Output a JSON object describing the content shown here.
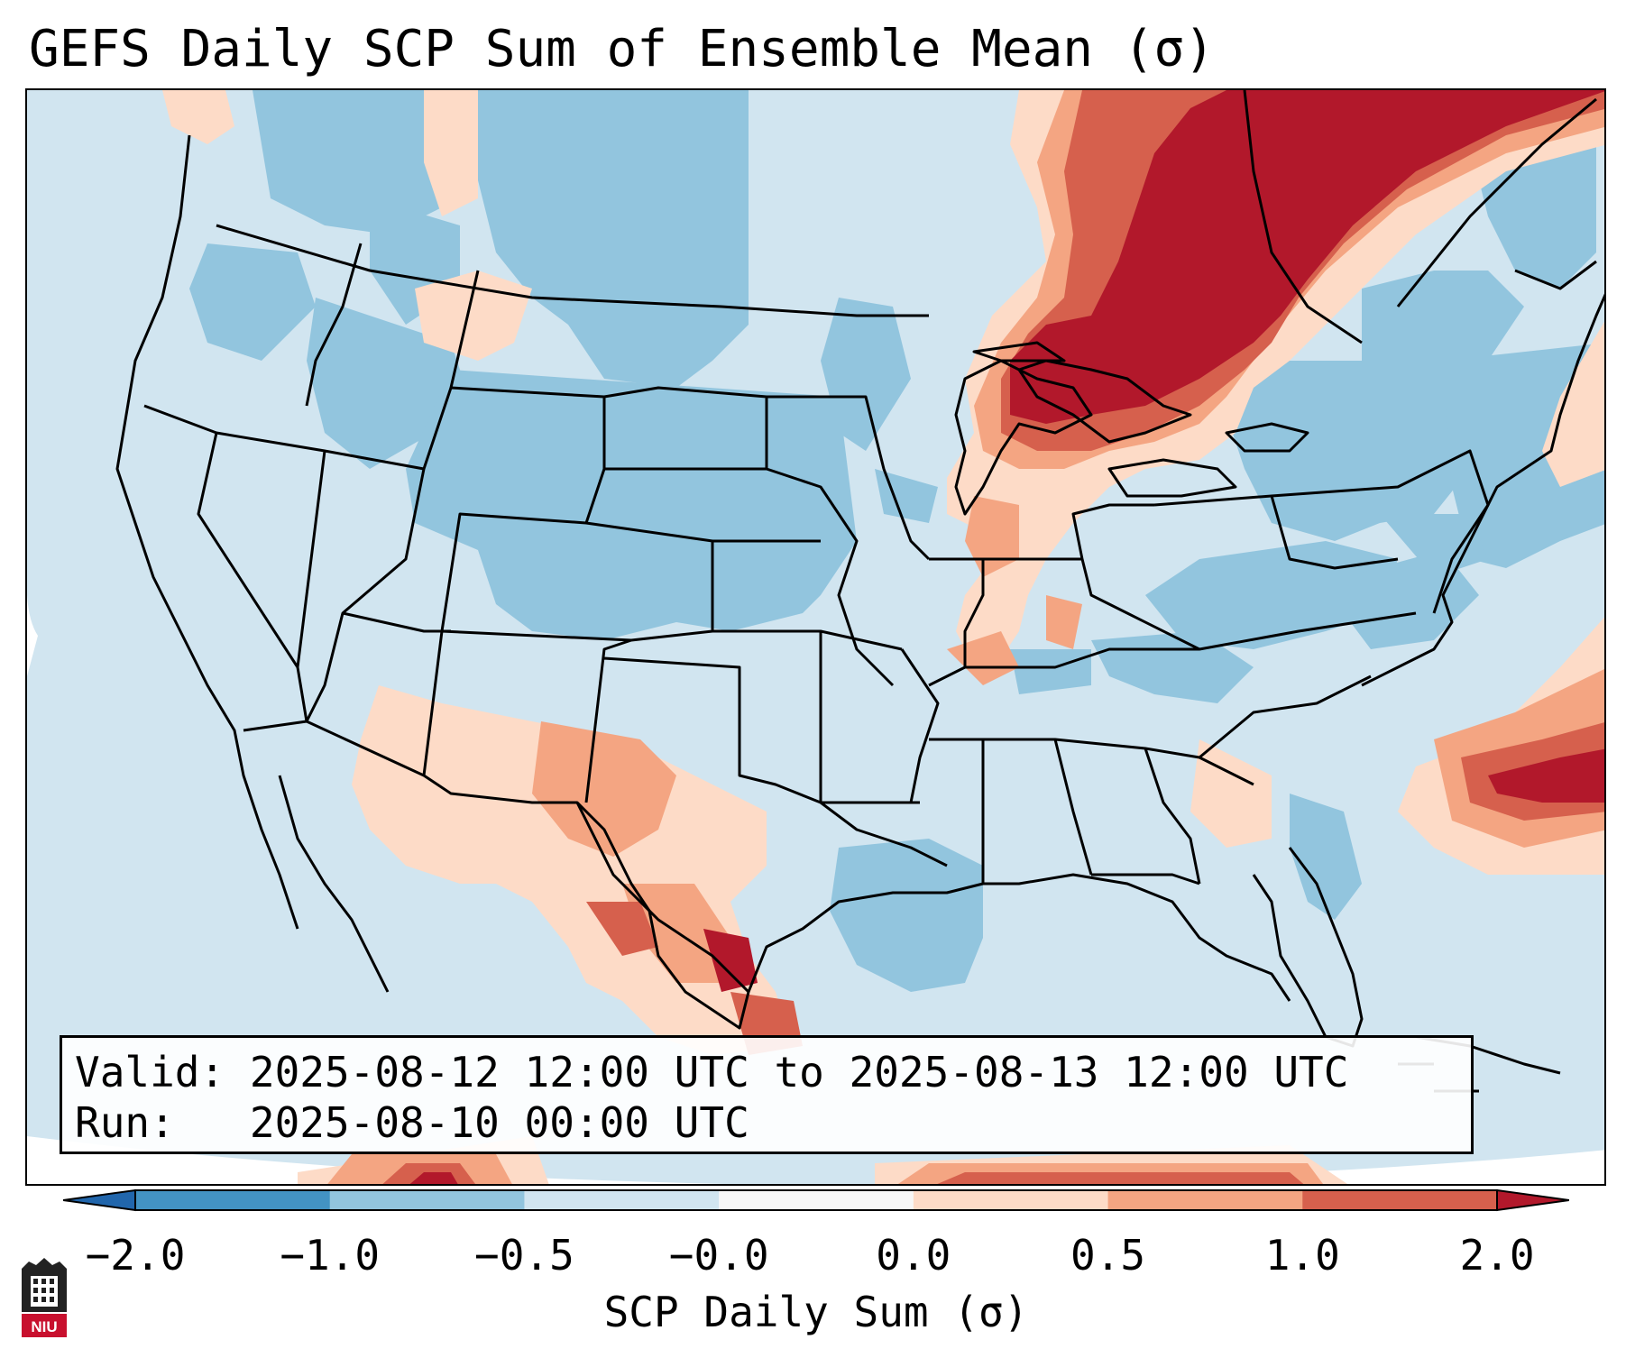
{
  "title": "GEFS Daily SCP Sum of Ensemble Mean (σ)",
  "info": {
    "valid_label": "Valid:",
    "valid_value": "2025-08-12 12:00 UTC to 2025-08-13 12:00 UTC",
    "run_label": "Run:",
    "run_value": "2025-08-10 00:00 UTC"
  },
  "colorbar": {
    "label": "SCP Daily Sum (σ)",
    "ticks": [
      "−2.0",
      "−1.0",
      "−0.5",
      "−0.0",
      "0.0",
      "0.5",
      "1.0",
      "2.0"
    ],
    "colors": [
      "#4393c3",
      "#92c5de",
      "#d1e5f0",
      "#f7f7f7",
      "#fddbc7",
      "#f4a582",
      "#d6604d",
      "#b2182b"
    ],
    "extend_low_color": "#2166ac",
    "extend_high_color": "#b2182b"
  },
  "map_colors": {
    "neutral_ocean": "#d1e5f0",
    "blue_light": "#92c5de",
    "red_light": "#fddbc7",
    "red_mid": "#f4a582",
    "red_strong": "#d6604d",
    "red_dark": "#b2182b",
    "outside_globe": "#ffffff"
  },
  "logo": {
    "icon": "niu-logo-icon",
    "text": "NIU"
  }
}
